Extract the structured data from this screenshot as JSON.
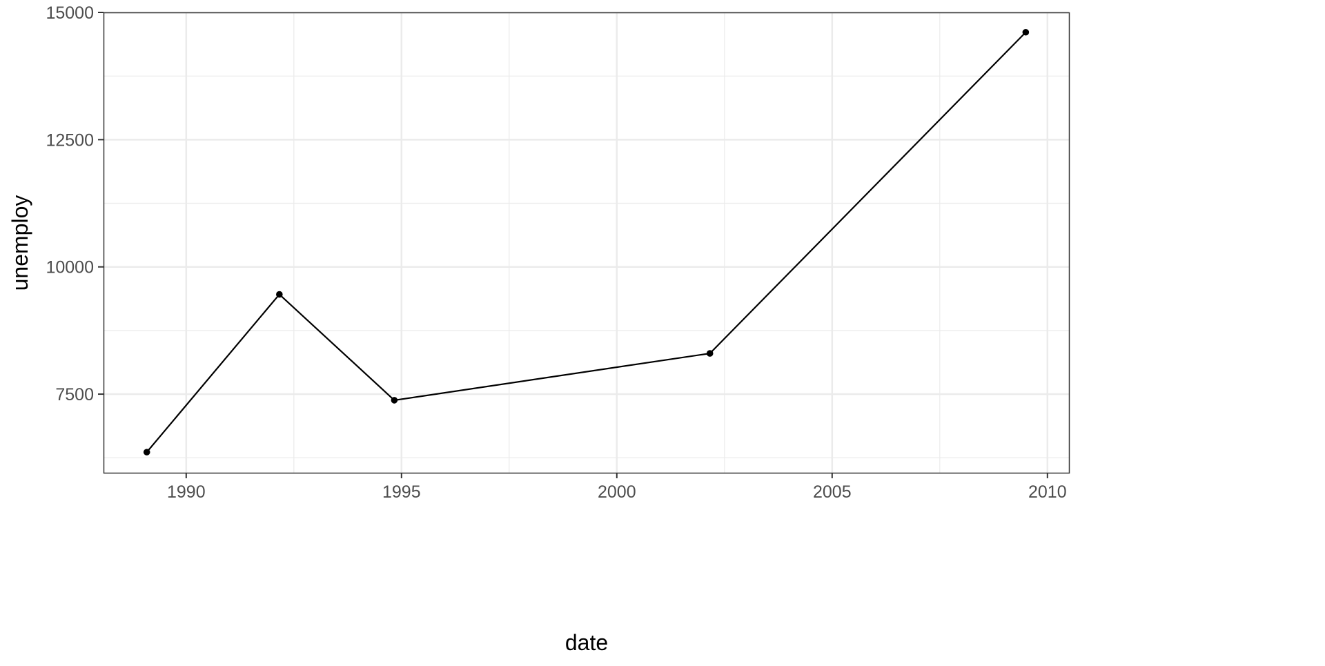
{
  "chart_data": {
    "type": "line",
    "title": "",
    "xlabel": "date",
    "ylabel": "unemploy",
    "x": [
      "1989-02-01",
      "1992-03-01",
      "1994-11-01",
      "2002-03-01",
      "2009-07-01"
    ],
    "series": [
      {
        "values": [
          6360,
          9460,
          7380,
          8300,
          14610
        ],
        "color": "#000000",
        "markers": true
      }
    ],
    "xlim": [
      1988.08,
      2010.5
    ],
    "ylim": [
      5955,
      15000
    ],
    "x_ticks": [
      "1990",
      "1995",
      "2000",
      "2005",
      "2010"
    ],
    "y_ticks": [
      "7500",
      "10000",
      "12500",
      "15000"
    ],
    "grid": true,
    "theme": "bw"
  }
}
